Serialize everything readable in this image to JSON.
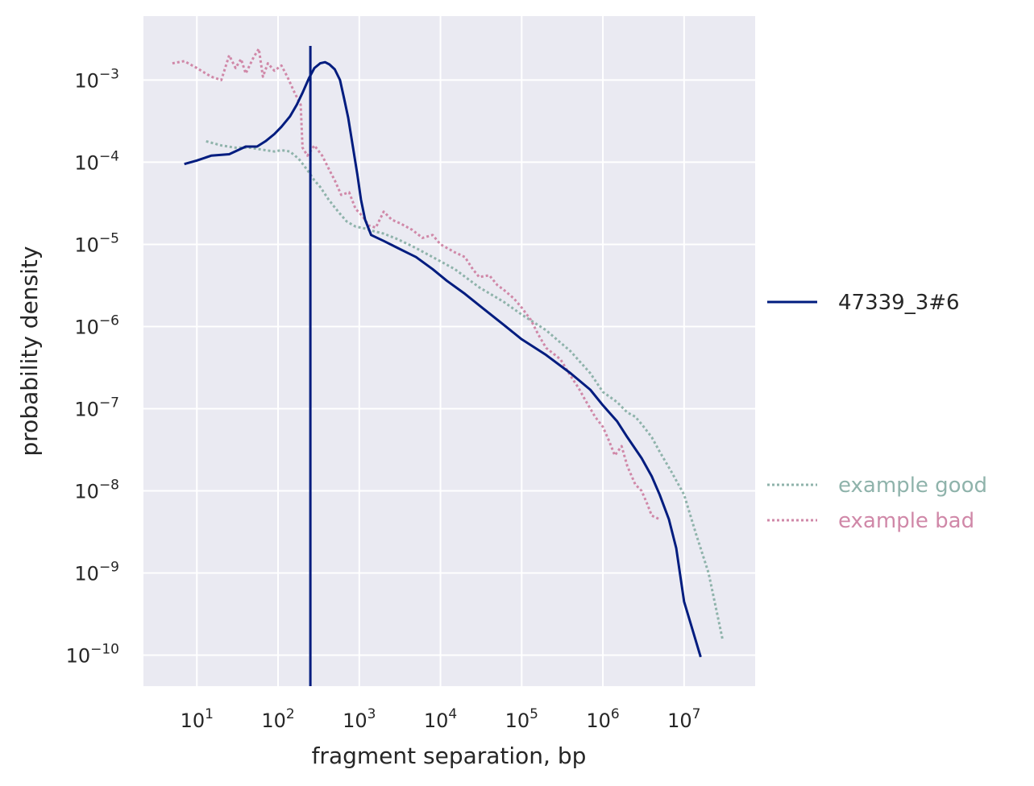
{
  "chart_data": {
    "type": "line",
    "xlabel": "fragment separation, bp",
    "ylabel": "probability density",
    "x_scale": "log",
    "y_scale": "log",
    "xlim": [
      2.2,
      75000000
    ],
    "ylim": [
      4.2e-11,
      0.006
    ],
    "x_ticks": [
      {
        "base": "10",
        "exp": "1",
        "value": 10
      },
      {
        "base": "10",
        "exp": "2",
        "value": 100
      },
      {
        "base": "10",
        "exp": "3",
        "value": 1000
      },
      {
        "base": "10",
        "exp": "4",
        "value": 10000
      },
      {
        "base": "10",
        "exp": "5",
        "value": 100000
      },
      {
        "base": "10",
        "exp": "6",
        "value": 1000000
      },
      {
        "base": "10",
        "exp": "7",
        "value": 10000000
      }
    ],
    "y_ticks": [
      {
        "base": "10",
        "exp": "−3",
        "value": 0.001
      },
      {
        "base": "10",
        "exp": "−4",
        "value": 0.0001
      },
      {
        "base": "10",
        "exp": "−5",
        "value": 1e-05
      },
      {
        "base": "10",
        "exp": "−6",
        "value": 1e-06
      },
      {
        "base": "10",
        "exp": "−7",
        "value": 1e-07
      },
      {
        "base": "10",
        "exp": "−8",
        "value": 1e-08
      },
      {
        "base": "10",
        "exp": "−9",
        "value": 1e-09
      },
      {
        "base": "10",
        "exp": "−10",
        "value": 1e-10
      }
    ],
    "grid": true,
    "background": "#eaeaf2",
    "vline": {
      "x": 250,
      "color": "#001c7f"
    },
    "series": [
      {
        "name": "47339_3#6",
        "color": "#001c7f",
        "style": "solid",
        "points": [
          [
            7,
            9.5e-05
          ],
          [
            10,
            0.000105
          ],
          [
            15,
            0.00012
          ],
          [
            25,
            0.000125
          ],
          [
            40,
            0.000155
          ],
          [
            55,
            0.000155
          ],
          [
            70,
            0.00018
          ],
          [
            90,
            0.00022
          ],
          [
            110,
            0.00027
          ],
          [
            140,
            0.00036
          ],
          [
            170,
            0.0005
          ],
          [
            200,
            0.0007
          ],
          [
            240,
            0.00105
          ],
          [
            280,
            0.0014
          ],
          [
            330,
            0.0016
          ],
          [
            380,
            0.00165
          ],
          [
            430,
            0.00155
          ],
          [
            500,
            0.00135
          ],
          [
            580,
            0.001
          ],
          [
            650,
            0.0006
          ],
          [
            730,
            0.00035
          ],
          [
            830,
            0.00016
          ],
          [
            950,
            7e-05
          ],
          [
            1050,
            3.5e-05
          ],
          [
            1180,
            2e-05
          ],
          [
            1400,
            1.3e-05
          ],
          [
            2000,
            1.1e-05
          ],
          [
            3000,
            9e-06
          ],
          [
            5000,
            7e-06
          ],
          [
            8000,
            5e-06
          ],
          [
            12000,
            3.6e-06
          ],
          [
            20000,
            2.5e-06
          ],
          [
            35000,
            1.6e-06
          ],
          [
            60000,
            1.05e-06
          ],
          [
            100000,
            7e-07
          ],
          [
            200000,
            4.5e-07
          ],
          [
            400000,
            2.7e-07
          ],
          [
            700000,
            1.7e-07
          ],
          [
            1000000,
            1.1e-07
          ],
          [
            1500000,
            7e-08
          ],
          [
            2000000,
            4.5e-08
          ],
          [
            3000000,
            2.5e-08
          ],
          [
            4000000,
            1.5e-08
          ],
          [
            5000000,
            9e-09
          ],
          [
            6500000,
            4.5e-09
          ],
          [
            8000000,
            2e-09
          ],
          [
            10000000,
            4.5e-10
          ],
          [
            16000000,
            9.5e-11
          ]
        ]
      },
      {
        "name": "example good",
        "color": "#8fb3ab",
        "style": "dotted",
        "points": [
          [
            13,
            0.00018
          ],
          [
            20,
            0.00016
          ],
          [
            30,
            0.00015
          ],
          [
            45,
            0.00015
          ],
          [
            70,
            0.00014
          ],
          [
            90,
            0.000135
          ],
          [
            110,
            0.00014
          ],
          [
            140,
            0.000135
          ],
          [
            180,
            0.00011
          ],
          [
            230,
            8e-05
          ],
          [
            280,
            6e-05
          ],
          [
            330,
            5e-05
          ],
          [
            420,
            3.5e-05
          ],
          [
            550,
            2.5e-05
          ],
          [
            700,
            1.9e-05
          ],
          [
            900,
            1.65e-05
          ],
          [
            1200,
            1.55e-05
          ],
          [
            1500,
            1.45e-05
          ],
          [
            2000,
            1.35e-05
          ],
          [
            3000,
            1.15e-05
          ],
          [
            5000,
            9e-06
          ],
          [
            8000,
            7e-06
          ],
          [
            15000,
            5e-06
          ],
          [
            30000,
            3e-06
          ],
          [
            60000,
            2e-06
          ],
          [
            100000,
            1.4e-06
          ],
          [
            200000,
            9e-07
          ],
          [
            400000,
            5e-07
          ],
          [
            700000,
            2.7e-07
          ],
          [
            1000000,
            1.6e-07
          ],
          [
            1500000,
            1.2e-07
          ],
          [
            2000000,
            9e-08
          ],
          [
            2500000,
            8e-08
          ],
          [
            3000000,
            6.5e-08
          ],
          [
            4000000,
            4.5e-08
          ],
          [
            5000000,
            3e-08
          ],
          [
            7000000,
            1.7e-08
          ],
          [
            10000000,
            9e-09
          ],
          [
            14000000,
            3e-09
          ],
          [
            20000000,
            1e-09
          ],
          [
            30000000,
            1.5e-10
          ]
        ]
      },
      {
        "name": "example bad",
        "color": "#d088a8",
        "style": "dotted",
        "points": [
          [
            5,
            0.0016
          ],
          [
            7,
            0.0017
          ],
          [
            10,
            0.0014
          ],
          [
            15,
            0.0011
          ],
          [
            20,
            0.001
          ],
          [
            25,
            0.002
          ],
          [
            30,
            0.0014
          ],
          [
            35,
            0.0018
          ],
          [
            40,
            0.0012
          ],
          [
            50,
            0.0019
          ],
          [
            58,
            0.0024
          ],
          [
            65,
            0.0011
          ],
          [
            75,
            0.0016
          ],
          [
            90,
            0.0013
          ],
          [
            110,
            0.0015
          ],
          [
            130,
            0.0011
          ],
          [
            160,
            0.0007
          ],
          [
            190,
            0.0005
          ],
          [
            200,
            0.00015
          ],
          [
            230,
            0.00012
          ],
          [
            280,
            0.00016
          ],
          [
            350,
            0.00012
          ],
          [
            430,
            8e-05
          ],
          [
            500,
            6e-05
          ],
          [
            600,
            4e-05
          ],
          [
            750,
            4.3e-05
          ],
          [
            900,
            2.7e-05
          ],
          [
            1100,
            2.2e-05
          ],
          [
            1300,
            1.7e-05
          ],
          [
            1600,
            1.6e-05
          ],
          [
            2000,
            2.5e-05
          ],
          [
            2500,
            2e-05
          ],
          [
            3200,
            1.8e-05
          ],
          [
            4500,
            1.5e-05
          ],
          [
            6000,
            1.2e-05
          ],
          [
            8000,
            1.3e-05
          ],
          [
            10000,
            1e-05
          ],
          [
            15000,
            8e-06
          ],
          [
            20000,
            7e-06
          ],
          [
            25000,
            5e-06
          ],
          [
            30000,
            4e-06
          ],
          [
            40000,
            4.2e-06
          ],
          [
            50000,
            3.2e-06
          ],
          [
            60000,
            2.8e-06
          ],
          [
            80000,
            2.2e-06
          ],
          [
            100000,
            1.7e-06
          ],
          [
            130000,
            1.2e-06
          ],
          [
            160000,
            8e-07
          ],
          [
            200000,
            5.5e-07
          ],
          [
            300000,
            4e-07
          ],
          [
            400000,
            2.5e-07
          ],
          [
            500000,
            1.8e-07
          ],
          [
            600000,
            1.3e-07
          ],
          [
            800000,
            8e-08
          ],
          [
            1000000,
            6e-08
          ],
          [
            1200000,
            4e-08
          ],
          [
            1400000,
            2.7e-08
          ],
          [
            1700000,
            3.5e-08
          ],
          [
            2000000,
            2e-08
          ],
          [
            2500000,
            1.2e-08
          ],
          [
            3000000,
            1e-08
          ],
          [
            3500000,
            7e-09
          ],
          [
            4000000,
            5e-09
          ],
          [
            5000000,
            4.5e-09
          ]
        ]
      }
    ],
    "legends": [
      {
        "position": "right-middle",
        "entries": [
          {
            "label": "47339_3#6",
            "color": "#001c7f",
            "style": "solid"
          }
        ]
      },
      {
        "position": "right-lower",
        "entries": [
          {
            "label": "example good",
            "color": "#8fb3ab",
            "style": "dotted"
          },
          {
            "label": "example bad",
            "color": "#d088a8",
            "style": "dotted"
          }
        ]
      }
    ]
  }
}
